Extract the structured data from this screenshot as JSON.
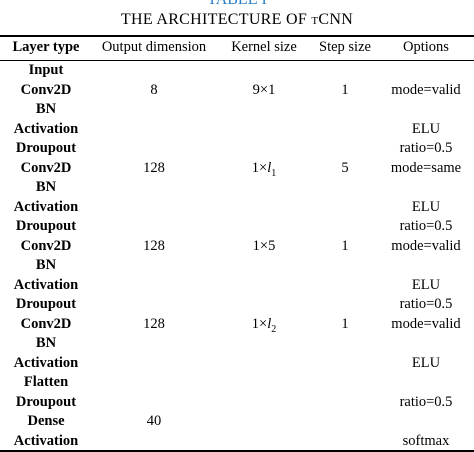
{
  "table_label": "TABLE I",
  "caption": "THE ARCHITECTURE OF tCNN",
  "headers": [
    "Layer type",
    "Output dimension",
    "Kernel size",
    "Step size",
    "Options"
  ],
  "rows": [
    {
      "layer": "Input",
      "output": "",
      "kernel": "",
      "step": "",
      "options": ""
    },
    {
      "layer": "Conv2D",
      "output": "8",
      "kernel": "9×1",
      "step": "1",
      "options": "mode=valid"
    },
    {
      "layer": "BN",
      "output": "",
      "kernel": "",
      "step": "",
      "options": ""
    },
    {
      "layer": "Activation",
      "output": "",
      "kernel": "",
      "step": "",
      "options": "ELU"
    },
    {
      "layer": "Droupout",
      "output": "",
      "kernel": "",
      "step": "",
      "options": "ratio=0.5"
    },
    {
      "layer": "Conv2D",
      "output": "128",
      "kernel": "1×l1",
      "step": "5",
      "options": "mode=same"
    },
    {
      "layer": "BN",
      "output": "",
      "kernel": "",
      "step": "",
      "options": ""
    },
    {
      "layer": "Activation",
      "output": "",
      "kernel": "",
      "step": "",
      "options": "ELU"
    },
    {
      "layer": "Droupout",
      "output": "",
      "kernel": "",
      "step": "",
      "options": "ratio=0.5"
    },
    {
      "layer": "Conv2D",
      "output": "128",
      "kernel": "1×5",
      "step": "1",
      "options": "mode=valid"
    },
    {
      "layer": "BN",
      "output": "",
      "kernel": "",
      "step": "",
      "options": ""
    },
    {
      "layer": "Activation",
      "output": "",
      "kernel": "",
      "step": "",
      "options": "ELU"
    },
    {
      "layer": "Droupout",
      "output": "",
      "kernel": "",
      "step": "",
      "options": "ratio=0.5"
    },
    {
      "layer": "Conv2D",
      "output": "128",
      "kernel": "1×l2",
      "step": "1",
      "options": "mode=valid"
    },
    {
      "layer": "BN",
      "output": "",
      "kernel": "",
      "step": "",
      "options": ""
    },
    {
      "layer": "Activation",
      "output": "",
      "kernel": "",
      "step": "",
      "options": "ELU"
    },
    {
      "layer": "Flatten",
      "output": "",
      "kernel": "",
      "step": "",
      "options": ""
    },
    {
      "layer": "Droupout",
      "output": "",
      "kernel": "",
      "step": "",
      "options": "ratio=0.5"
    },
    {
      "layer": "Dense",
      "output": "40",
      "kernel": "",
      "step": "",
      "options": ""
    },
    {
      "layer": "Activation",
      "output": "",
      "kernel": "",
      "step": "",
      "options": "softmax"
    }
  ],
  "colors": {
    "label": "#2c7fc6",
    "text": "#000000"
  }
}
